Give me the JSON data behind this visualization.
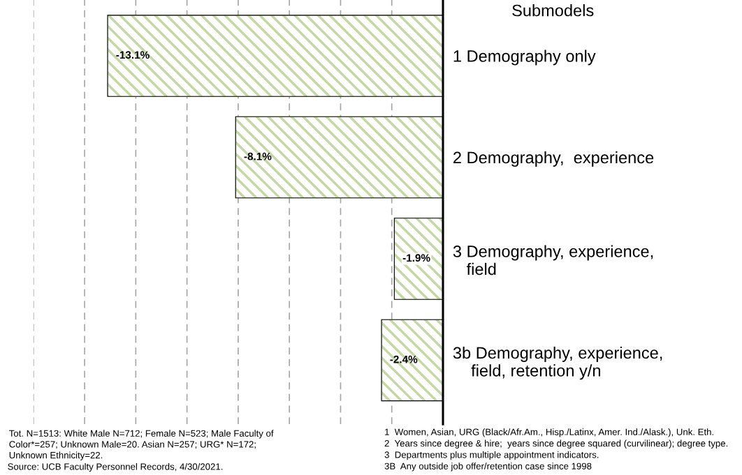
{
  "chart_data": {
    "type": "bar",
    "orientation": "horizontal",
    "ylabel": "Submodels",
    "categories": [
      "1 Demography only",
      "2 Demography,  experience",
      "3 Demography, experience,\n   field",
      "3b Demography, experience,\n    field, retention y/n"
    ],
    "values": [
      -13.1,
      -8.1,
      -1.9,
      -2.4
    ],
    "color": "#c4d7a4",
    "value_labels": [
      "-13.1%",
      "-8.1%",
      "-1.9%",
      "-2.4%"
    ],
    "xlim": [
      -16,
      0
    ],
    "xticks": [
      {
        "value": -16,
        "label": null
      },
      {
        "value": -14,
        "label": null
      },
      {
        "value": -12,
        "label": null
      },
      {
        "value": -10,
        "label": null
      },
      {
        "value": -8,
        "label": null
      },
      {
        "value": -6,
        "label": null
      },
      {
        "value": -4,
        "label": null
      },
      {
        "value": -2,
        "label": null
      }
    ],
    "tick_labels": "y",
    "grid": "x",
    "line_style": "dashed",
    "annotations": [
      "Tot. N=1513: White Male N=712; Female N=523; Male Faculty of\nColor*=257; Unknown Male=20. Asian N=257; URG* N=172;\nUnknown Ethnicity=22.",
      "Source: UCB Faculty Personnel Records, 4/30/2021.",
      "1  Women, Asian, URG (Black/Afr.Am., Hisp./Latinx, Amer. Ind./Alask.), Unk. Eth.",
      "2  Years since degree & hire;  years since degree squared (curvilinear); degree type.",
      "3  Departments plus multiple appointment indicators.",
      "3B  Any outside job offer/retention case since 1998"
    ]
  }
}
